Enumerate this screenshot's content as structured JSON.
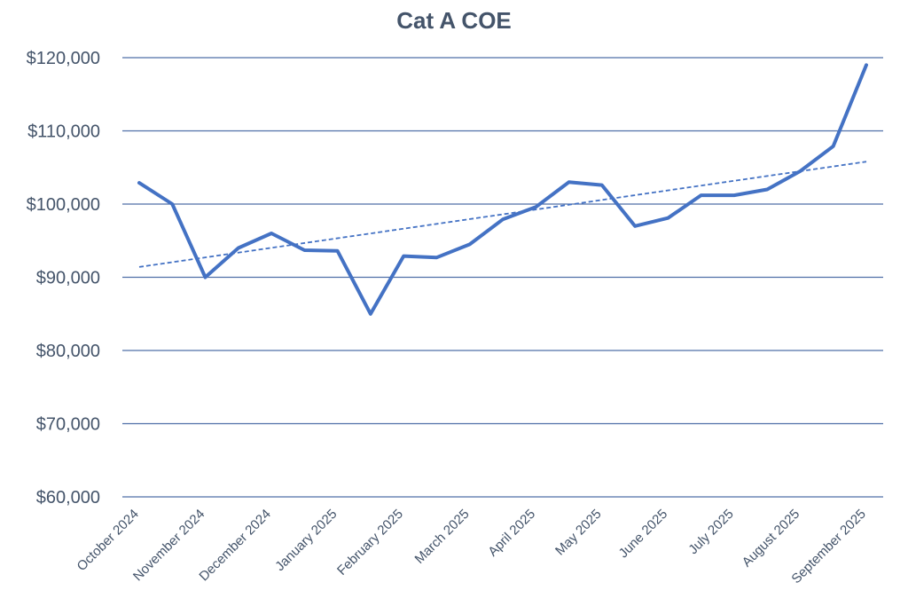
{
  "chart_data": {
    "type": "line",
    "title": "Cat A COE",
    "xlabel": "",
    "ylabel": "",
    "ylim": [
      60000,
      120000
    ],
    "y_ticks": [
      60000,
      70000,
      80000,
      90000,
      100000,
      110000,
      120000
    ],
    "y_tick_labels": [
      "$60,000",
      "$70,000",
      "$80,000",
      "$90,000",
      "$100,000",
      "$110,000",
      "$120,000"
    ],
    "x_tick_labels": [
      "October 2024",
      "November 2024",
      "December 2024",
      "January 2025",
      "February 2025",
      "March 2025",
      "April 2025",
      "May 2025",
      "June 2025",
      "July 2025",
      "August 2025",
      "September 2025"
    ],
    "grid": true,
    "legend": "none",
    "series": [
      {
        "values": [
          102900,
          100000,
          90000,
          94000,
          96000,
          93700,
          93600,
          85000,
          92900,
          92700,
          94500,
          97900,
          99600,
          103000,
          102600,
          97000,
          98100,
          101200,
          101200,
          102000,
          104500,
          107900,
          119000
        ],
        "color": "#4472c4",
        "style": "solid"
      },
      {
        "values": [
          91400,
          105800
        ],
        "color": "#4472c4",
        "style": "dashed",
        "trendline": "linear"
      }
    ]
  }
}
